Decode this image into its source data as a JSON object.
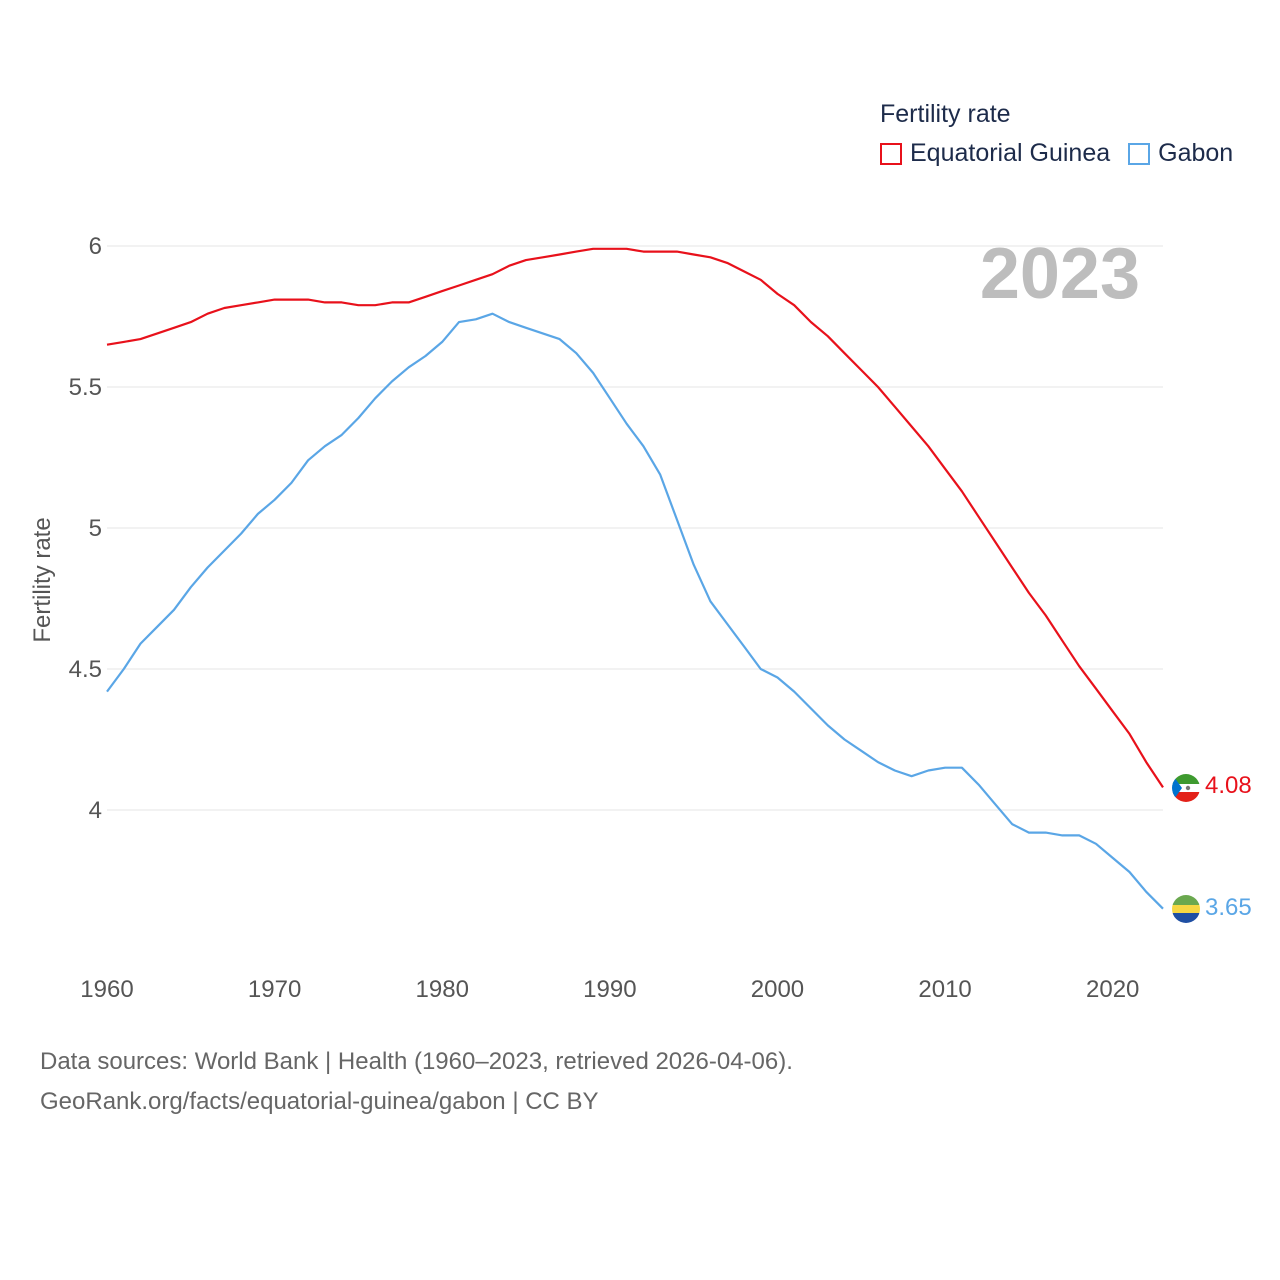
{
  "chart_data": {
    "type": "line",
    "title": "Fertility rate",
    "ylabel": "Fertility rate",
    "xlabel": "",
    "year_label": "2023",
    "xlim": [
      1960,
      2023
    ],
    "ylim": [
      3.5,
      6.1
    ],
    "x_ticks": [
      "1960",
      "1970",
      "1980",
      "1990",
      "2000",
      "2010",
      "2020"
    ],
    "y_ticks": [
      "4",
      "4.5",
      "5",
      "5.5",
      "6"
    ],
    "x": [
      1960,
      1961,
      1962,
      1963,
      1964,
      1965,
      1966,
      1967,
      1968,
      1969,
      1970,
      1971,
      1972,
      1973,
      1974,
      1975,
      1976,
      1977,
      1978,
      1979,
      1980,
      1981,
      1982,
      1983,
      1984,
      1985,
      1986,
      1987,
      1988,
      1989,
      1990,
      1991,
      1992,
      1993,
      1994,
      1995,
      1996,
      1997,
      1998,
      1999,
      2000,
      2001,
      2002,
      2003,
      2004,
      2005,
      2006,
      2007,
      2008,
      2009,
      2010,
      2011,
      2012,
      2013,
      2014,
      2015,
      2016,
      2017,
      2018,
      2019,
      2020,
      2021,
      2022,
      2023
    ],
    "series": [
      {
        "name": "Equatorial Guinea",
        "color": "#e8111b",
        "end_label": "4.08",
        "flag": "equatorial-guinea-flag-icon",
        "values": [
          5.65,
          5.66,
          5.67,
          5.69,
          5.71,
          5.73,
          5.76,
          5.78,
          5.79,
          5.8,
          5.81,
          5.81,
          5.81,
          5.8,
          5.8,
          5.79,
          5.79,
          5.8,
          5.8,
          5.82,
          5.84,
          5.86,
          5.88,
          5.9,
          5.93,
          5.95,
          5.96,
          5.97,
          5.98,
          5.99,
          5.99,
          5.99,
          5.98,
          5.98,
          5.98,
          5.97,
          5.96,
          5.94,
          5.91,
          5.88,
          5.83,
          5.79,
          5.73,
          5.68,
          5.62,
          5.56,
          5.5,
          5.43,
          5.36,
          5.29,
          5.21,
          5.13,
          5.04,
          4.95,
          4.86,
          4.77,
          4.69,
          4.6,
          4.51,
          4.43,
          4.35,
          4.27,
          4.17,
          4.08
        ]
      },
      {
        "name": "Gabon",
        "color": "#5aa6e6",
        "end_label": "3.65",
        "flag": "gabon-flag-icon",
        "values": [
          4.42,
          4.5,
          4.59,
          4.65,
          4.71,
          4.79,
          4.86,
          4.92,
          4.98,
          5.05,
          5.1,
          5.16,
          5.24,
          5.29,
          5.33,
          5.39,
          5.46,
          5.52,
          5.57,
          5.61,
          5.66,
          5.73,
          5.74,
          5.76,
          5.73,
          5.71,
          5.69,
          5.67,
          5.62,
          5.55,
          5.46,
          5.37,
          5.29,
          5.19,
          5.03,
          4.87,
          4.74,
          4.66,
          4.58,
          4.5,
          4.47,
          4.42,
          4.36,
          4.3,
          4.25,
          4.21,
          4.17,
          4.14,
          4.12,
          4.14,
          4.15,
          4.15,
          4.09,
          4.02,
          3.95,
          3.92,
          3.92,
          3.91,
          3.91,
          3.88,
          3.83,
          3.78,
          3.71,
          3.65
        ]
      }
    ]
  },
  "legend": {
    "title": "Fertility rate",
    "items": [
      "Equatorial Guinea",
      "Gabon"
    ]
  },
  "footer": {
    "line1": "Data sources: World Bank | Health (1960–2023, retrieved 2026-04-06).",
    "line2": "GeoRank.org/facts/equatorial-guinea/gabon | CC BY"
  }
}
